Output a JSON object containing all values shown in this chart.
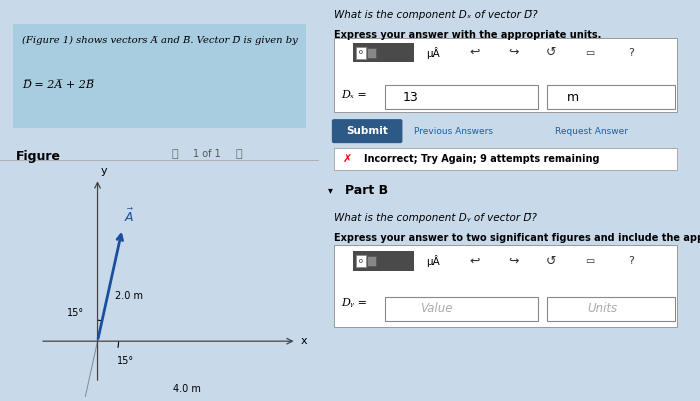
{
  "bg_left": "#c8daea",
  "bg_right": "#ccd7e0",
  "fig_width": 7.0,
  "fig_height": 4.01,
  "info_box_color": "#a8cce0",
  "problem_line1": "(Figure 1) shows vectors A̅ and B̅. Vector D̅ is given by",
  "problem_line2": "D̅ = 2A̅ + 2B̅",
  "figure_label": "Figure",
  "nav_text": "1 of 1",
  "angle_A": "15°",
  "angle_B": "15°",
  "vec_A_len": "2.0 m",
  "vec_B_len": "4.0 m",
  "right_q1": "What is the component Dₓ of vector D̅?",
  "right_sub1": "Express your answer with the appropriate units.",
  "toolbar_dark": "#4a4a4a",
  "answer_val": "13",
  "answer_unit": "m",
  "submit_color": "#2d5986",
  "submit_text": "Submit",
  "prev_text": "Previous Answers",
  "req_text": "Request Answer",
  "incorrect_text": "Incorrect; Try Again; 9 attempts remaining",
  "partB_text": "Part B",
  "right_q2": "What is the component Dᵧ of vector D̅?",
  "right_sub2": "Express your answer to two significant figures and include the appropriate units.",
  "val_placeholder": "Value",
  "unit_placeholder": "Units",
  "dx_label": "Dₓ =",
  "dy_label": "Dᵧ ="
}
